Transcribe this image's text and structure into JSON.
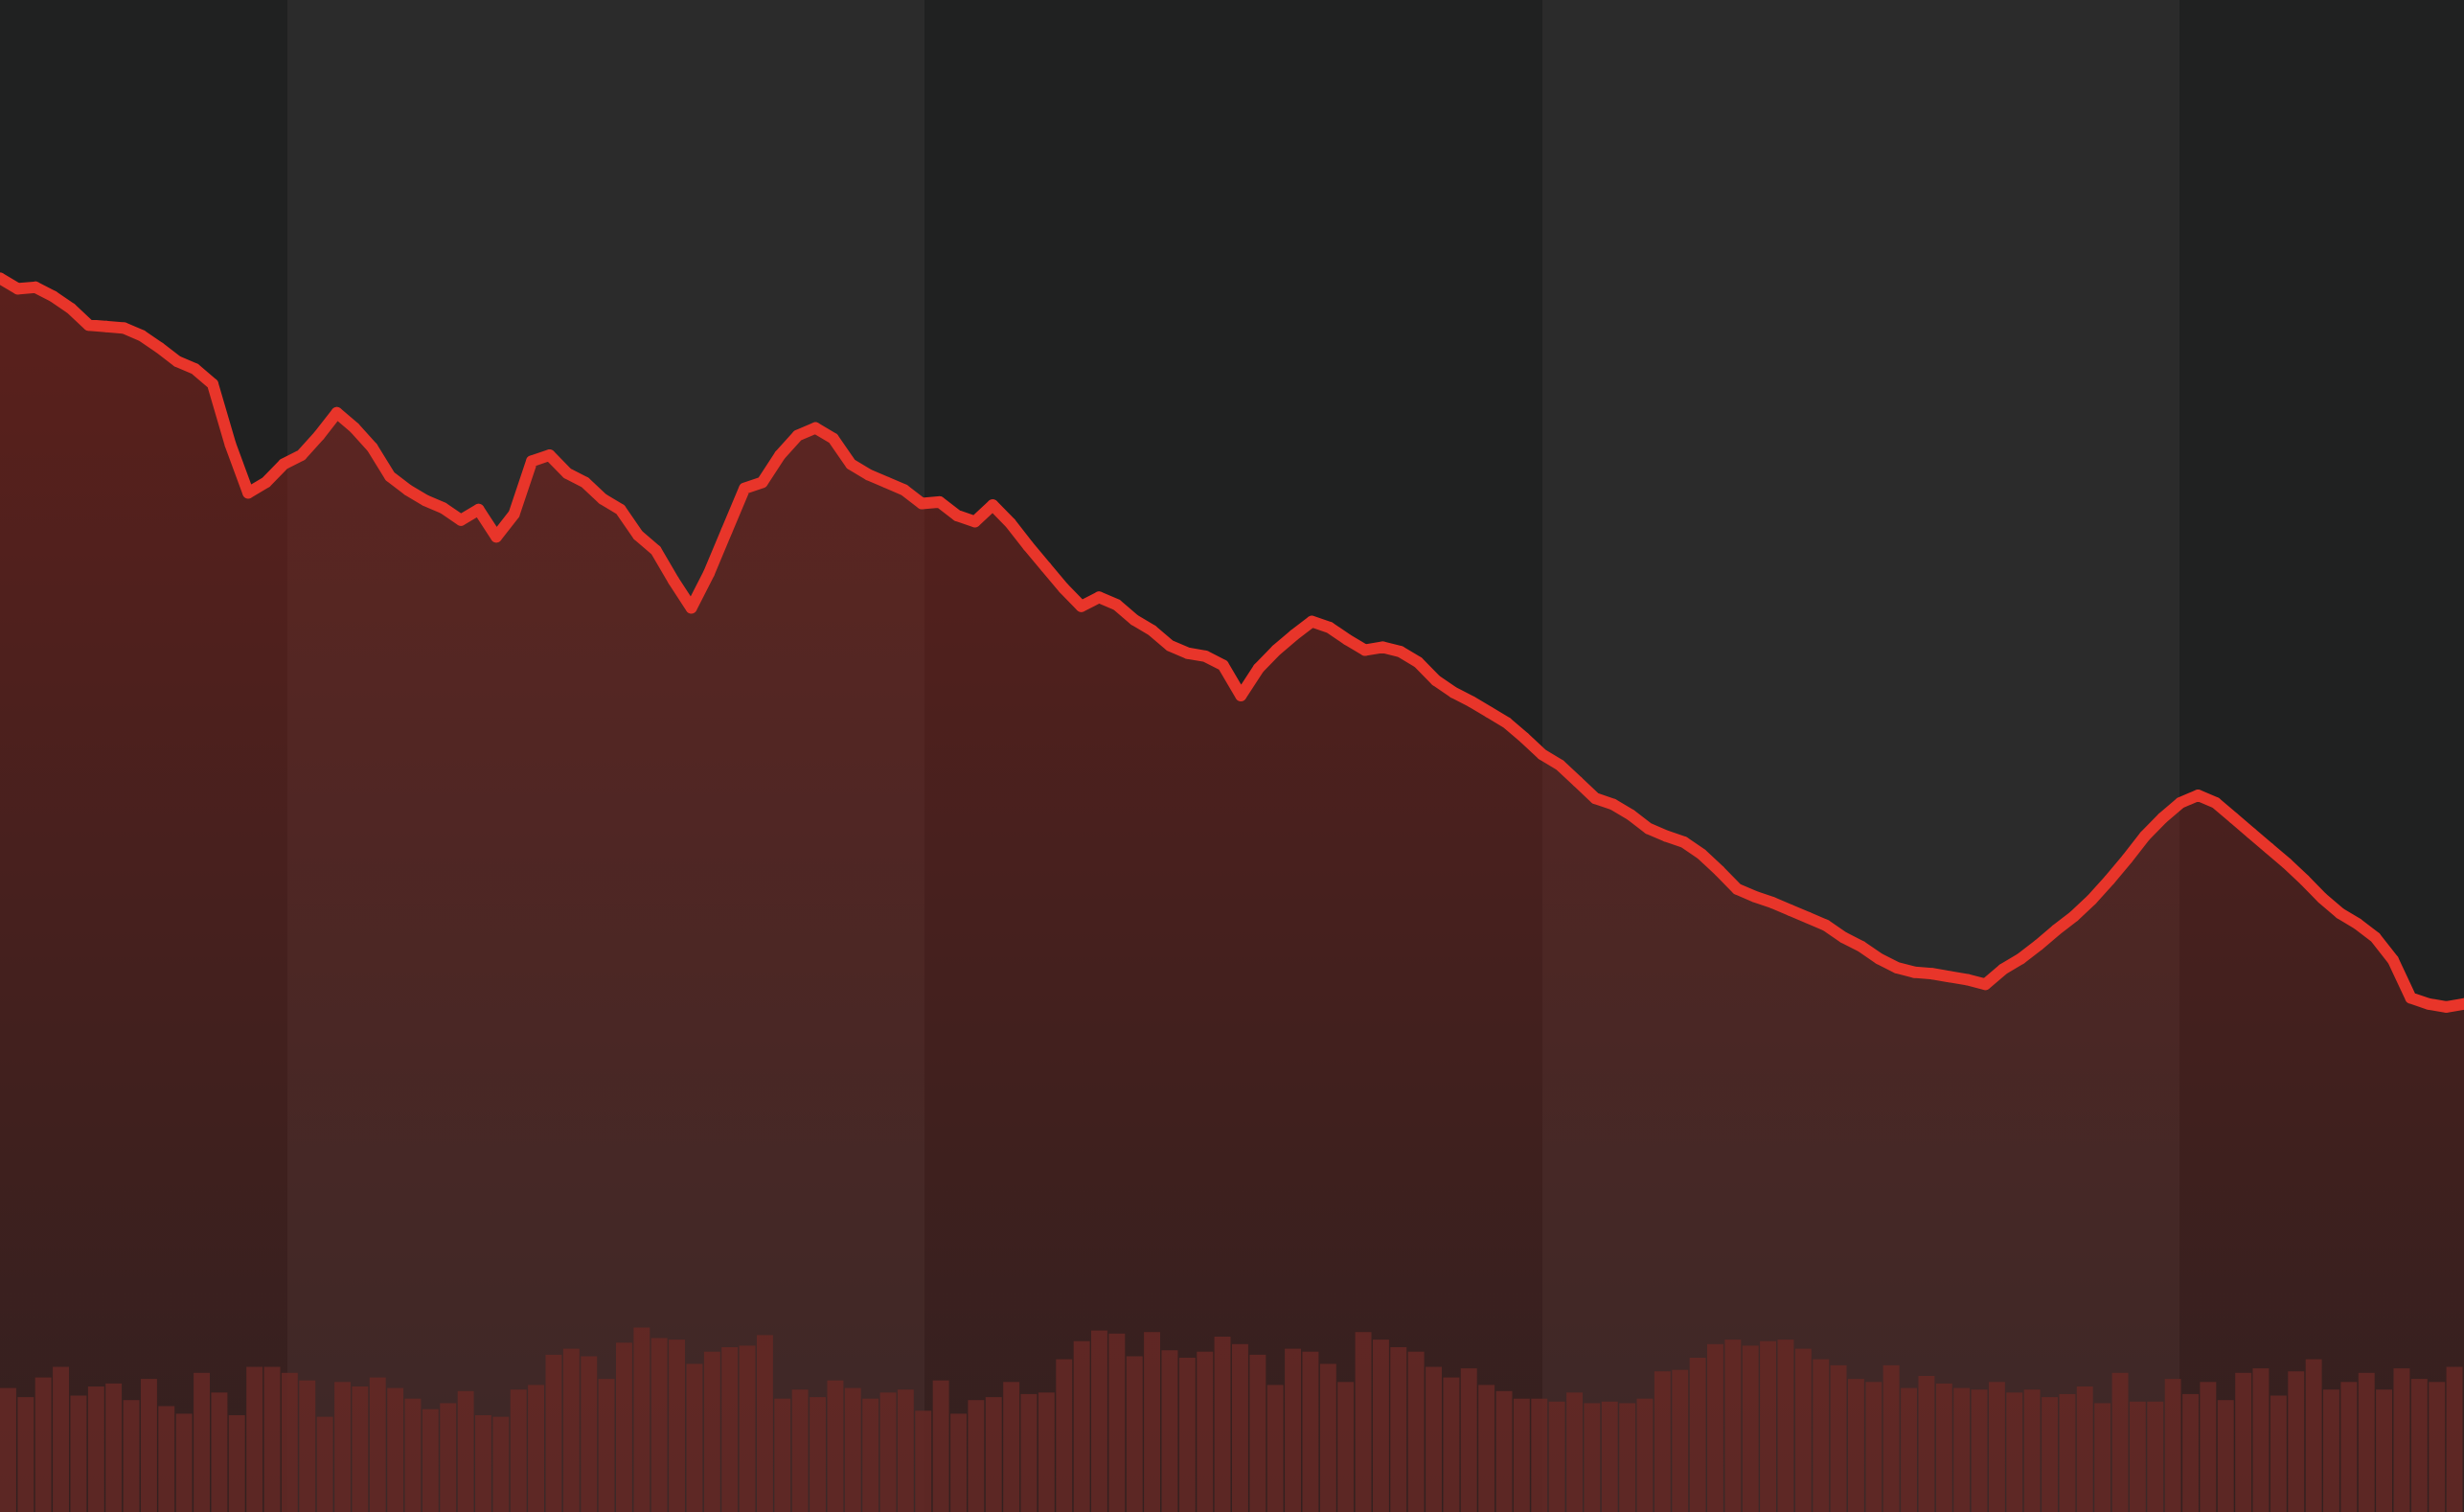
{
  "chart_data": {
    "type": "line",
    "title": "",
    "xlabel": "",
    "ylabel": "",
    "grid": false,
    "legend": "none",
    "ylim": [
      0,
      100
    ],
    "volume_ylim": [
      0,
      100
    ],
    "colors": {
      "background": "#232424",
      "band_light": "#2b2b2b",
      "band_dark": "#202121",
      "line": "#e8352a",
      "area_fill": "#8a1f18",
      "volume": "#5c2a28"
    },
    "series": [
      {
        "values": [
          81.6,
          80.9,
          81.0,
          80.4,
          79.6,
          78.5,
          78.4,
          78.3,
          77.8,
          77.0,
          76.1,
          75.6,
          74.6,
          70.6,
          67.4,
          68.1,
          69.3,
          69.9,
          71.2,
          72.7,
          71.7,
          70.4,
          68.5,
          67.6,
          66.9,
          66.4,
          65.6,
          66.3,
          64.5,
          66.0,
          69.5,
          69.9,
          68.7,
          68.1,
          67.0,
          66.3,
          64.6,
          63.6,
          61.6,
          59.8,
          62.1,
          64.9,
          67.7,
          68.1,
          69.9,
          71.2,
          71.7,
          71.0,
          69.3,
          68.6,
          68.1,
          67.6,
          66.7,
          66.8,
          65.9,
          65.5,
          66.6,
          65.4,
          63.9,
          62.5,
          61.1,
          59.9,
          60.5,
          60.0,
          59.0,
          58.3,
          57.3,
          56.8,
          56.6,
          56.0,
          54.0,
          55.8,
          57.0,
          58.0,
          58.9,
          58.5,
          57.7,
          57.0,
          57.2,
          56.9,
          56.2,
          55.0,
          54.2,
          53.6,
          52.9,
          52.2,
          51.2,
          50.1,
          49.4,
          48.3,
          47.2,
          46.8,
          46.1,
          45.2,
          44.7,
          44.3,
          43.5,
          42.4,
          41.2,
          40.7,
          40.3,
          39.8,
          39.3,
          38.8,
          38.0,
          37.4,
          36.6,
          36.0,
          35.7,
          35.6,
          35.4,
          35.2,
          34.9,
          35.9,
          36.6,
          37.5,
          38.5,
          39.4,
          40.5,
          41.8,
          43.2,
          44.7,
          45.9,
          46.9,
          47.4,
          46.9,
          45.9,
          44.9,
          43.9,
          42.9,
          41.8,
          40.6,
          39.6,
          38.9,
          38.0,
          36.5,
          34.0,
          33.6,
          33.4,
          33.6
        ]
      }
    ],
    "volume": [
      8.2,
      7.6,
      8.9,
      9.6,
      7.7,
      8.3,
      8.5,
      7.4,
      8.8,
      7.0,
      6.5,
      9.2,
      7.9,
      6.4,
      9.6,
      9.6,
      9.2,
      8.7,
      6.3,
      8.6,
      8.3,
      8.9,
      8.2,
      7.5,
      6.8,
      7.2,
      8.0,
      6.4,
      6.3,
      8.1,
      8.4,
      10.4,
      10.8,
      10.3,
      8.8,
      11.2,
      12.2,
      11.5,
      11.4,
      9.8,
      10.6,
      10.9,
      11.0,
      11.7,
      7.5,
      8.1,
      7.6,
      8.7,
      8.2,
      7.5,
      7.9,
      8.1,
      6.7,
      8.7,
      6.5,
      7.4,
      7.6,
      8.6,
      7.8,
      7.9,
      10.1,
      11.3,
      12.0,
      11.8,
      10.3,
      11.9,
      10.7,
      10.2,
      10.6,
      11.6,
      11.1,
      10.4,
      8.4,
      10.8,
      10.6,
      9.8,
      8.6,
      11.9,
      11.4,
      10.9,
      10.6,
      9.6,
      8.9,
      9.5,
      8.4,
      8.0,
      7.5,
      7.5,
      7.3,
      7.9,
      7.2,
      7.3,
      7.2,
      7.5,
      9.3,
      9.4,
      10.2,
      11.1,
      11.4,
      11.0,
      11.3,
      11.4,
      10.8,
      10.1,
      9.7,
      8.8,
      8.6,
      9.7,
      8.2,
      9.0,
      8.5,
      8.2,
      8.1,
      8.6,
      7.9,
      8.1,
      7.6,
      7.8,
      8.3,
      7.2,
      9.2,
      7.3,
      7.3,
      8.8,
      7.8,
      8.6,
      7.4,
      9.2,
      9.5,
      7.7,
      9.3,
      10.1,
      8.1,
      8.6,
      9.2,
      8.1,
      9.5,
      8.8,
      8.6,
      9.6
    ]
  }
}
